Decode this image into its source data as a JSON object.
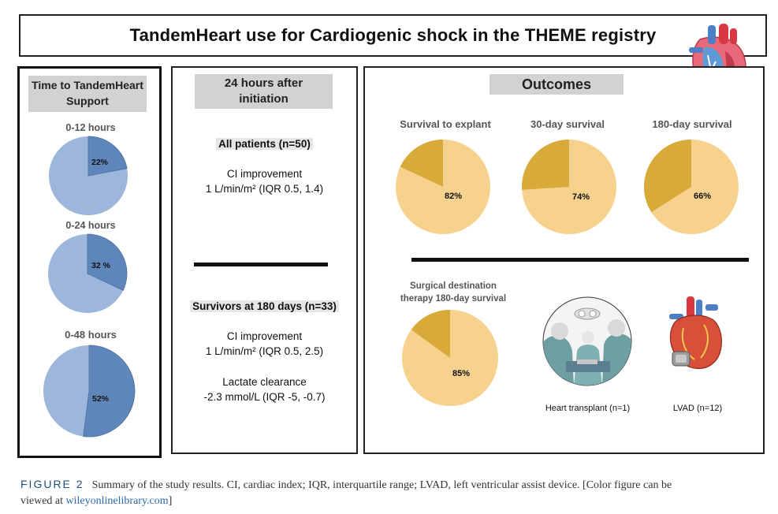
{
  "title": "TandemHeart use for Cardiogenic shock in the THEME registry",
  "left_panel": {
    "header": [
      "Time to TandemHeart",
      "Support"
    ],
    "items": [
      {
        "label": "0-12 hours",
        "pct_text": "22%",
        "value": 22
      },
      {
        "label": "0-24 hours",
        "pct_text": "32 %",
        "value": 32
      },
      {
        "label": "0-48 hours",
        "pct_text": "52%",
        "value": 52
      }
    ]
  },
  "middle_panel": {
    "header": [
      "24 hours after",
      "initiation"
    ],
    "all_patients": "All patients (n=50)",
    "all_ci_1": "CI improvement",
    "all_ci_2": "1 L/min/m² (IQR 0.5, 1.4)",
    "survivors": "Survivors at 180 days (n=33)",
    "surv_ci_1": "CI improvement",
    "surv_ci_2": "1 L/min/m² (IQR 0.5, 2.5)",
    "lactate_1": "Lactate clearance",
    "lactate_2": "-2.3 mmol/L (IQR -5, -0.7)"
  },
  "right_panel": {
    "header": "Outcomes",
    "outcomes": [
      {
        "label": "Survival to explant",
        "pct_text": "82%",
        "value": 82
      },
      {
        "label": "30-day survival",
        "pct_text": "74%",
        "value": 74
      },
      {
        "label": "180-day survival",
        "pct_text": "66%",
        "value": 66
      }
    ],
    "surgical_label": [
      "Surgical destination",
      "therapy 180-day survival"
    ],
    "surgical_pct_text": "85%",
    "surgical_value": 85,
    "heart_transplant": "Heart transplant (n=1)",
    "lvad": "LVAD (n=12)"
  },
  "caption": {
    "figure": "FIGURE 2",
    "text": "Summary of the study results. CI, cardiac index; IQR, interquartile range; LVAD, left ventricular assist device.  [Color figure can be",
    "text2": "viewed at ",
    "link": "wileyonlinelibrary.com",
    "end": "]"
  },
  "colors": {
    "blue_light": "#9db6db",
    "blue_dark": "#5f86bb",
    "gold_light": "#f6d28e",
    "gold_dark": "#d8aa3a",
    "grey_label": "#d2d2d2"
  },
  "icons": [
    "heart-anatomy-icon",
    "surgeons-photo-icon",
    "lvad-heart-icon"
  ]
}
